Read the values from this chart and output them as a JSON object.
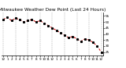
{
  "title": "Milwaukee Weather Dew Point (Last 24 Hours)",
  "y_values": [
    52,
    54,
    51,
    53,
    52,
    50,
    51,
    52,
    50,
    51,
    49,
    47,
    45,
    43,
    41,
    39,
    37,
    38,
    36,
    34,
    36,
    35,
    33,
    30,
    25
  ],
  "x_labels": [
    "12",
    "1",
    "2",
    "3",
    "4",
    "5",
    "6",
    "7",
    "8",
    "9",
    "10",
    "11",
    "12",
    "1",
    "2",
    "3",
    "4",
    "5",
    "6",
    "7",
    "8",
    "9",
    "10",
    "11",
    "12"
  ],
  "ylim": [
    22,
    58
  ],
  "yticks": [
    25,
    30,
    35,
    40,
    45,
    50,
    55
  ],
  "line_color": "#cc0000",
  "marker_color": "#000000",
  "bg_color": "#ffffff",
  "grid_color": "#999999",
  "title_fontsize": 4.2,
  "tick_fontsize": 3.0,
  "line_width": 0.7,
  "marker_size": 1.2,
  "vgrid_interval": 3
}
